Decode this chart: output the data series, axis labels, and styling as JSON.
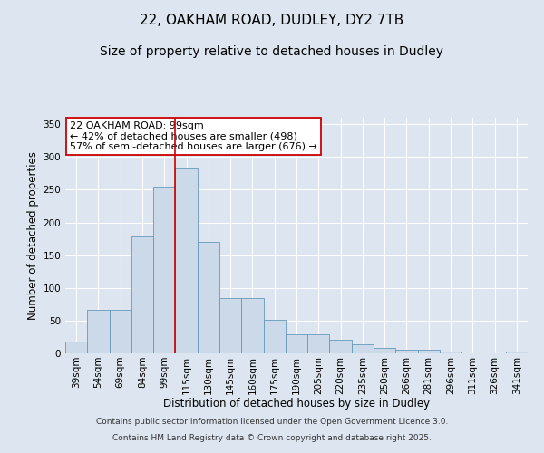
{
  "title1": "22, OAKHAM ROAD, DUDLEY, DY2 7TB",
  "title2": "Size of property relative to detached houses in Dudley",
  "xlabel": "Distribution of detached houses by size in Dudley",
  "ylabel": "Number of detached properties",
  "categories": [
    "39sqm",
    "54sqm",
    "69sqm",
    "84sqm",
    "99sqm",
    "115sqm",
    "130sqm",
    "145sqm",
    "160sqm",
    "175sqm",
    "190sqm",
    "205sqm",
    "220sqm",
    "235sqm",
    "250sqm",
    "266sqm",
    "281sqm",
    "296sqm",
    "311sqm",
    "326sqm",
    "341sqm"
  ],
  "values": [
    18,
    67,
    67,
    178,
    255,
    284,
    170,
    84,
    84,
    51,
    29,
    29,
    21,
    14,
    9,
    5,
    5,
    3,
    0,
    0,
    3
  ],
  "bar_color": "#ccd9e8",
  "bar_edge_color": "#6699bb",
  "property_line_index": 4,
  "property_line_color": "#cc0000",
  "annotation_text": "22 OAKHAM ROAD: 99sqm\n← 42% of detached houses are smaller (498)\n57% of semi-detached houses are larger (676) →",
  "annotation_box_color": "#ffffff",
  "annotation_box_edge": "#cc0000",
  "ylim": [
    0,
    360
  ],
  "yticks": [
    0,
    50,
    100,
    150,
    200,
    250,
    300,
    350
  ],
  "bg_color": "#dde6f0",
  "plot_bg_color": "#dde6f0",
  "grid_color": "#ffffff",
  "footer1": "Contains HM Land Registry data © Crown copyright and database right 2025.",
  "footer2": "Contains public sector information licensed under the Open Government Licence 3.0.",
  "title_fontsize": 11,
  "subtitle_fontsize": 10,
  "axis_label_fontsize": 8.5,
  "tick_fontsize": 7.5,
  "annotation_fontsize": 8,
  "footer_fontsize": 6.5
}
